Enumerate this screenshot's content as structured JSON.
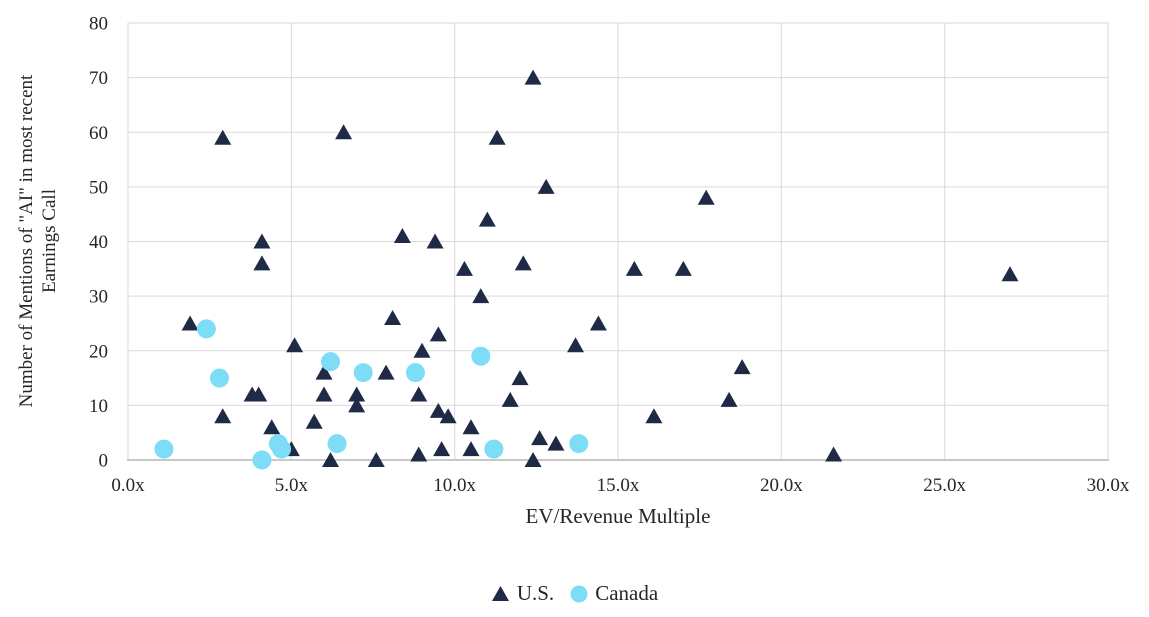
{
  "chart_data": {
    "type": "scatter",
    "title": "",
    "xlabel": "EV/Revenue Multiple",
    "ylabel": "Number of Mentions of \"AI\" in most recent Earnings Call",
    "ylabel_lines": [
      "Number of Mentions of \"AI\" in most recent",
      "Earnings Call"
    ],
    "xlim": [
      0,
      30
    ],
    "ylim": [
      0,
      80
    ],
    "grid": true,
    "legend_position": "bottom-center",
    "x_ticks": [
      {
        "value": 0,
        "label": "0.0x"
      },
      {
        "value": 5,
        "label": "5.0x"
      },
      {
        "value": 10,
        "label": "10.0x"
      },
      {
        "value": 15,
        "label": "15.0x"
      },
      {
        "value": 20,
        "label": "20.0x"
      },
      {
        "value": 25,
        "label": "25.0x"
      },
      {
        "value": 30,
        "label": "30.0x"
      }
    ],
    "y_ticks": [
      {
        "value": 0,
        "label": "0"
      },
      {
        "value": 10,
        "label": "10"
      },
      {
        "value": 20,
        "label": "20"
      },
      {
        "value": 30,
        "label": "30"
      },
      {
        "value": 40,
        "label": "40"
      },
      {
        "value": 50,
        "label": "50"
      },
      {
        "value": 60,
        "label": "60"
      },
      {
        "value": 70,
        "label": "70"
      },
      {
        "value": 80,
        "label": "80"
      }
    ],
    "series": [
      {
        "name": "U.S.",
        "marker": "triangle",
        "color": "#1F2A47",
        "points": [
          [
            1.9,
            25
          ],
          [
            2.9,
            59
          ],
          [
            2.9,
            8
          ],
          [
            3.8,
            12
          ],
          [
            4.0,
            12
          ],
          [
            4.1,
            40
          ],
          [
            4.1,
            36
          ],
          [
            4.4,
            6
          ],
          [
            5.0,
            2
          ],
          [
            5.1,
            21
          ],
          [
            5.7,
            7
          ],
          [
            6.0,
            16
          ],
          [
            6.0,
            12
          ],
          [
            6.2,
            0
          ],
          [
            6.6,
            60
          ],
          [
            7.0,
            12
          ],
          [
            7.0,
            10
          ],
          [
            7.6,
            0
          ],
          [
            7.9,
            16
          ],
          [
            8.1,
            26
          ],
          [
            8.4,
            41
          ],
          [
            8.9,
            12
          ],
          [
            8.9,
            1
          ],
          [
            9.0,
            20
          ],
          [
            9.4,
            40
          ],
          [
            9.5,
            23
          ],
          [
            9.5,
            9
          ],
          [
            9.6,
            2
          ],
          [
            9.8,
            8
          ],
          [
            10.3,
            35
          ],
          [
            10.5,
            6
          ],
          [
            10.5,
            2
          ],
          [
            10.8,
            30
          ],
          [
            11.0,
            44
          ],
          [
            11.3,
            59
          ],
          [
            11.7,
            11
          ],
          [
            12.0,
            15
          ],
          [
            12.1,
            36
          ],
          [
            12.4,
            70
          ],
          [
            12.4,
            0
          ],
          [
            12.6,
            4
          ],
          [
            12.8,
            50
          ],
          [
            13.1,
            3
          ],
          [
            13.7,
            21
          ],
          [
            14.4,
            25
          ],
          [
            15.5,
            35
          ],
          [
            16.1,
            8
          ],
          [
            17.0,
            35
          ],
          [
            17.7,
            48
          ],
          [
            18.4,
            11
          ],
          [
            18.8,
            17
          ],
          [
            21.6,
            1
          ],
          [
            27.0,
            34
          ]
        ]
      },
      {
        "name": "Canada",
        "marker": "circle",
        "color": "#7EDDF6",
        "points": [
          [
            1.1,
            2
          ],
          [
            2.4,
            24
          ],
          [
            2.8,
            15
          ],
          [
            4.1,
            0
          ],
          [
            4.6,
            3
          ],
          [
            4.7,
            2
          ],
          [
            6.2,
            18
          ],
          [
            6.4,
            3
          ],
          [
            7.2,
            16
          ],
          [
            8.8,
            16
          ],
          [
            10.8,
            19
          ],
          [
            11.2,
            2
          ],
          [
            13.8,
            3
          ]
        ]
      }
    ]
  },
  "styles": {
    "background": "#FFFFFF",
    "gridline_color": "#D9D9D9",
    "axis_line_color": "#C8C8C8",
    "text_color": "#262626"
  }
}
